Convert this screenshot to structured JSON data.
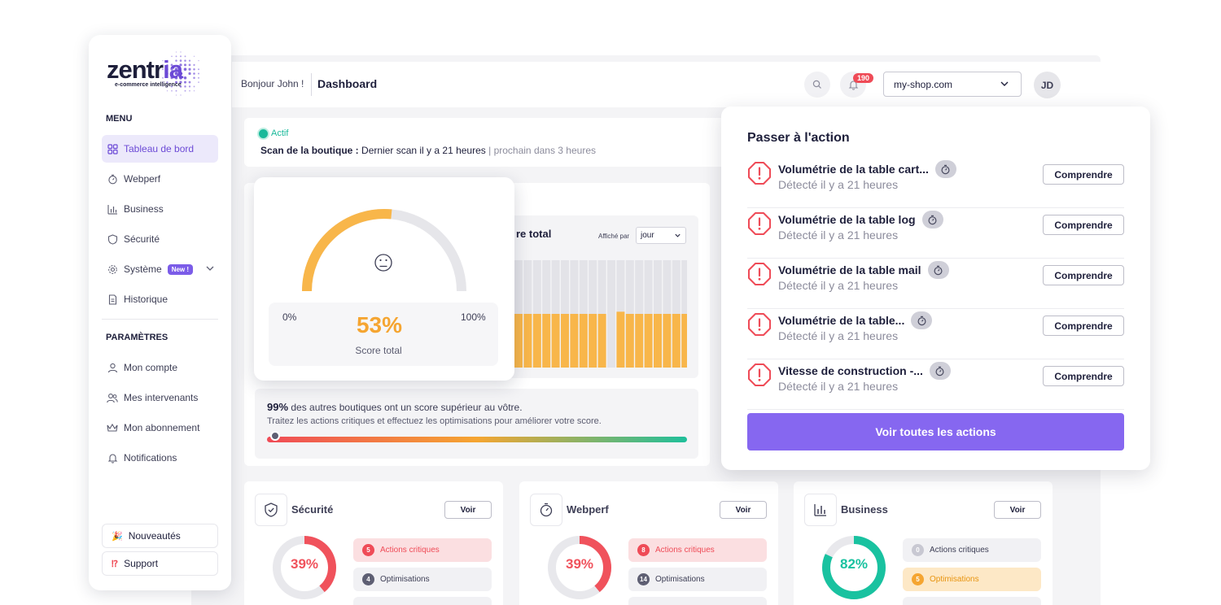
{
  "header": {
    "greeting": "Bonjour John !",
    "title": "Dashboard",
    "notifications_count": "190",
    "shop": "my-shop.com",
    "avatar_initials": "JD"
  },
  "sidebar": {
    "logo_main": "zentr",
    "logo_accent": "ia",
    "logo_sub": "e-commerce intelligence",
    "menu_label": "MENU",
    "menu_items": [
      {
        "label": "Tableau de bord",
        "icon": "grid-icon",
        "active": true
      },
      {
        "label": "Webperf",
        "icon": "stopwatch-icon"
      },
      {
        "label": "Business",
        "icon": "bar-chart-icon"
      },
      {
        "label": "Sécurité",
        "icon": "shield-icon"
      },
      {
        "label": "Système",
        "icon": "gear-icon",
        "badge": "New !"
      },
      {
        "label": "Historique",
        "icon": "document-icon"
      }
    ],
    "settings_label": "PARAMÈTRES",
    "settings_items": [
      {
        "label": "Mon compte",
        "icon": "user-icon"
      },
      {
        "label": "Mes intervenants",
        "icon": "users-icon"
      },
      {
        "label": "Mon abonnement",
        "icon": "crown-icon"
      },
      {
        "label": "Notifications",
        "icon": "bell-icon"
      }
    ],
    "footer": {
      "news": "Nouveautés",
      "support": "Support"
    }
  },
  "status": {
    "badge": "Actif",
    "scan_label": "Scan de la boutique :",
    "scan_last": "Dernier scan il y a 21 heures",
    "scan_next": "| prochain dans 3 heures"
  },
  "score": {
    "value_percent": 53,
    "value_label": "53%",
    "min_label": "0%",
    "max_label": "100%",
    "label": "Score total",
    "history_title": "re total",
    "period_label": "Affiché par",
    "period_value": "jour",
    "colors": {
      "accent": "#f5a531",
      "track": "#e6e6ea"
    }
  },
  "history_chart": {
    "bar_values_percent": [
      50,
      50,
      50,
      50,
      50,
      50,
      50,
      50,
      50,
      50,
      0,
      52,
      50,
      50,
      50,
      50,
      50,
      50,
      50
    ]
  },
  "comparison": {
    "percent": "99%",
    "text": "des autres boutiques ont un score supérieur au vôtre.",
    "advice": "Traitez les actions critiques et effectuez les optimisations pour améliorer votre score."
  },
  "actions": {
    "title": "Passer à l'action",
    "button_label": "Comprendre",
    "items": [
      {
        "name": "Volumétrie de la table cart...",
        "time": "Détecté il y a 21 heures"
      },
      {
        "name": "Volumétrie de la table log",
        "time": "Détecté il y a 21 heures"
      },
      {
        "name": "Volumétrie de la table mail",
        "time": "Détecté il y a 21 heures"
      },
      {
        "name": "Volumétrie de la table...",
        "time": "Détecté il y a 21 heures"
      },
      {
        "name": "Vitesse de construction -...",
        "time": "Détecté il y a 21 heures"
      }
    ],
    "see_all": "Voir toutes les actions"
  },
  "modules": [
    {
      "title": "Sécurité",
      "icon": "shield-check-icon",
      "voir": "Voir",
      "score": 39,
      "score_label": "39%",
      "color": "#f0525c",
      "critical_count": "5",
      "critical_label": "Actions critiques",
      "optim_count": "4",
      "optim_label": "Optimisations"
    },
    {
      "title": "Webperf",
      "icon": "stopwatch-icon",
      "voir": "Voir",
      "score": 39,
      "score_label": "39%",
      "color": "#f0525c",
      "critical_count": "8",
      "critical_label": "Actions critiques",
      "optim_count": "14",
      "optim_label": "Optimisations"
    },
    {
      "title": "Business",
      "icon": "bar-chart-icon",
      "voir": "Voir",
      "score": 82,
      "score_label": "82%",
      "color": "#19c2a0",
      "critical_count": "0",
      "critical_label": "Actions critiques",
      "optim_count": "5",
      "optim_label": "Optimisations"
    }
  ]
}
